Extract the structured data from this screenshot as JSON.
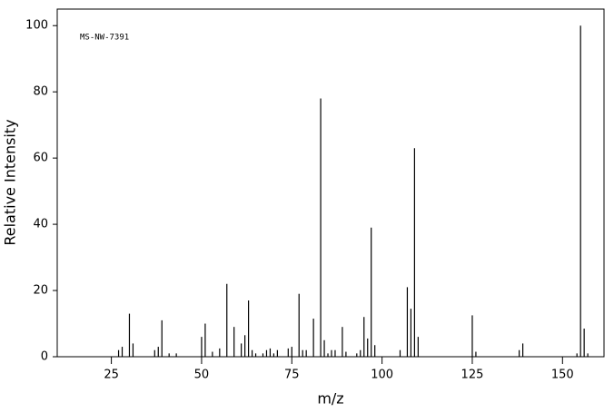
{
  "chart_data": {
    "type": "bar",
    "annotation": "MS-NW-7391",
    "xlabel": "m/z",
    "ylabel": "Relative Intensity",
    "x": [
      27,
      28,
      30,
      31,
      37,
      38,
      39,
      41,
      43,
      50,
      51,
      53,
      55,
      57,
      59,
      61,
      62,
      63,
      64,
      65,
      67,
      68,
      69,
      70,
      71,
      74,
      75,
      77,
      78,
      79,
      81,
      83,
      84,
      85,
      86,
      87,
      89,
      90,
      93,
      94,
      95,
      96,
      97,
      98,
      105,
      107,
      108,
      109,
      110,
      125,
      126,
      138,
      139,
      154,
      155,
      156,
      157
    ],
    "values": [
      2,
      3,
      13,
      4,
      2,
      3,
      11,
      1,
      1,
      6,
      10,
      1.5,
      2.5,
      22,
      9,
      4,
      6.5,
      17,
      2,
      1,
      1,
      2,
      2.5,
      1,
      2,
      2.5,
      3,
      19,
      2,
      2,
      11.5,
      78,
      5,
      1,
      2,
      2,
      9,
      1.5,
      1,
      2,
      12,
      5.5,
      39,
      3.5,
      2,
      21,
      14.5,
      63,
      6,
      12.5,
      1.5,
      2,
      4,
      1,
      100,
      8.5,
      1
    ],
    "color": "#000000",
    "xlim": [
      10,
      161.5
    ],
    "ylim": [
      0,
      105
    ],
    "xticks": [
      25,
      50,
      75,
      100,
      125,
      150
    ],
    "yticks": [
      0,
      20,
      40,
      60,
      80,
      100
    ]
  }
}
